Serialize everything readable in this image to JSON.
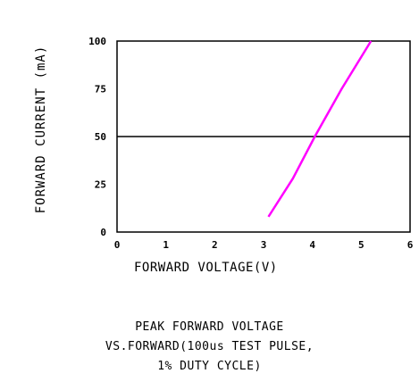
{
  "chart_data": {
    "type": "line",
    "title": "",
    "xlabel": "FORWARD VOLTAGE(V)",
    "ylabel": "FORWARD CURRENT (mA)",
    "xlim": [
      0,
      6
    ],
    "ylim": [
      0,
      100
    ],
    "x_ticks": [
      "0",
      "1",
      "2",
      "3",
      "4",
      "5",
      "6"
    ],
    "y_ticks": [
      "0",
      "25",
      "50",
      "75",
      "100"
    ],
    "reference_lines": [
      {
        "axis": "y",
        "value": 50
      }
    ],
    "series": [
      {
        "color": "#ff00ff",
        "points": [
          [
            3.1,
            8
          ],
          [
            3.6,
            28
          ],
          [
            4.05,
            50
          ],
          [
            4.6,
            75
          ],
          [
            5.2,
            100
          ]
        ]
      }
    ],
    "caption": [
      "PEAK FORWARD VOLTAGE",
      "VS.FORWARD(100us TEST PULSE,",
      "1% DUTY CYCLE)"
    ]
  }
}
